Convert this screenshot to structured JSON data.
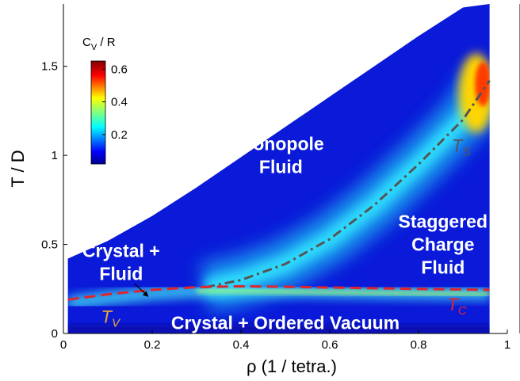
{
  "chart_data": {
    "type": "heatmap",
    "xlabel": "ρ (1 / tetra.)",
    "ylabel": "T / D",
    "xlim": [
      0,
      1
    ],
    "ylim": [
      0,
      1.85
    ],
    "x_ticks": [
      "0",
      "0.2",
      "0.4",
      "0.6",
      "0.8",
      "1"
    ],
    "x_tick_values": [
      0,
      0.2,
      0.4,
      0.6,
      0.8,
      1.0
    ],
    "y_ticks": [
      "0",
      "0.5",
      "1",
      "1.5"
    ],
    "y_tick_values": [
      0,
      0.5,
      1.0,
      1.5
    ],
    "colorbar": {
      "title": "C_V / R",
      "ticks": [
        "0.6",
        "0.4",
        "0.2"
      ],
      "tick_values": [
        0.6,
        0.4,
        0.2
      ],
      "range": [
        0.02,
        0.65
      ]
    },
    "data_boundary": [
      [
        0.01,
        0.42
      ],
      [
        0.1,
        0.52
      ],
      [
        0.2,
        0.66
      ],
      [
        0.3,
        0.82
      ],
      [
        0.4,
        0.99
      ],
      [
        0.5,
        1.16
      ],
      [
        0.6,
        1.33
      ],
      [
        0.7,
        1.5
      ],
      [
        0.8,
        1.67
      ],
      [
        0.9,
        1.83
      ],
      [
        0.96,
        1.85
      ]
    ],
    "regions": [
      {
        "lines": [
          "Monopole",
          "Fluid"
        ],
        "x": 0.49,
        "y": 1.0
      },
      {
        "lines": [
          "Staggered",
          "Charge",
          "Fluid"
        ],
        "x": 0.855,
        "y": 0.5
      },
      {
        "lines": [
          "Crystal +",
          "Fluid"
        ],
        "x": 0.13,
        "y": 0.4
      },
      {
        "lines": [
          "Crystal + Ordered Vacuum"
        ],
        "x": 0.5,
        "y": 0.06
      }
    ],
    "series": [
      {
        "name": "T_S",
        "style": "dash-dot",
        "color": "#555555",
        "x": [
          0.32,
          0.4,
          0.5,
          0.6,
          0.7,
          0.8,
          0.9,
          0.96
        ],
        "y": [
          0.26,
          0.3,
          0.39,
          0.53,
          0.72,
          0.95,
          1.2,
          1.42
        ]
      },
      {
        "name": "T_C",
        "style": "dashed",
        "color": "#e0262c",
        "x": [
          0.01,
          0.1,
          0.2,
          0.3,
          0.4,
          0.5,
          0.6,
          0.7,
          0.8,
          0.9,
          0.96
        ],
        "y": [
          0.19,
          0.22,
          0.245,
          0.26,
          0.265,
          0.262,
          0.258,
          0.254,
          0.25,
          0.247,
          0.245
        ]
      }
    ],
    "curve_labels": [
      {
        "main": "T",
        "sub": "S",
        "color": "#555555",
        "x": 0.875,
        "y": 1.02
      },
      {
        "main": "T",
        "sub": "C",
        "color": "#e0262c",
        "x": 0.865,
        "y": 0.13
      },
      {
        "main": "T",
        "sub": "V",
        "color": "#e8a838",
        "x": 0.085,
        "y": 0.06
      }
    ],
    "arrow": {
      "from": [
        0.16,
        0.28
      ],
      "to": [
        0.19,
        0.21
      ]
    }
  }
}
